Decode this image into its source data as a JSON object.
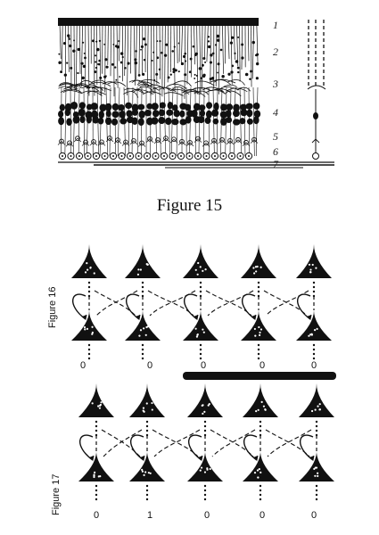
{
  "figure15": {
    "caption": "Figure 15",
    "layer_numbers": [
      "1",
      "2",
      "3",
      "4",
      "5",
      "6",
      "7"
    ]
  },
  "figure16": {
    "label": "Figure 16",
    "activity": [
      "0",
      "0",
      "0",
      "0",
      "0"
    ],
    "bar_covers_columns": [
      2,
      3,
      4
    ]
  },
  "figure17": {
    "label": "Figure 17",
    "activity": [
      "0",
      "1",
      "0",
      "0",
      "0"
    ]
  },
  "colors": {
    "ink": "#111111",
    "background": "#ffffff"
  }
}
